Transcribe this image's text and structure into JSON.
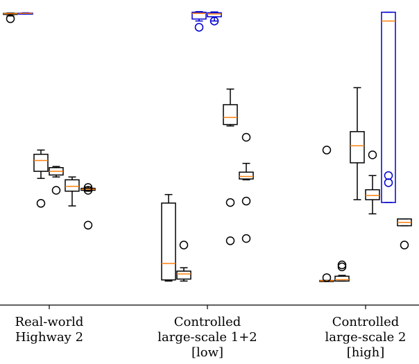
{
  "chart_data": {
    "type": "box",
    "title": "",
    "xlabel": "",
    "ylabel": "",
    "ylim": [
      0,
      100
    ],
    "grid": false,
    "legend": "none",
    "colors": {
      "default_box": "#000000",
      "highlight_box": "#0000cc",
      "median": "#ff7f0e",
      "flier": "#000000"
    },
    "categories": [
      {
        "label_lines": [
          "Real-world",
          "Highway 2"
        ]
      },
      {
        "label_lines": [
          "Controlled",
          "large-scale 1+2",
          "[low]"
        ]
      },
      {
        "label_lines": [
          "Controlled",
          "large-scale 2",
          "[high]"
        ]
      }
    ],
    "boxes": [
      {
        "group": 0,
        "slot": 0,
        "color": "black",
        "whislo": 98.3,
        "q1": 98.9,
        "med": 99.1,
        "q3": 99.2,
        "whishi": 99.3,
        "fliers": [
          97.3
        ]
      },
      {
        "group": 0,
        "slot": 1,
        "color": "blue",
        "whislo": 99.0,
        "q1": 99.1,
        "med": 99.2,
        "q3": 99.3,
        "whishi": 99.4,
        "fliers": []
      },
      {
        "group": 0,
        "slot": 2,
        "color": "black",
        "whislo": 41.0,
        "q1": 43.5,
        "med": 47.3,
        "q3": 49.5,
        "whishi": 51.0,
        "fliers": [
          32.2
        ]
      },
      {
        "group": 0,
        "slot": 3,
        "color": "black",
        "whislo": 41.5,
        "q1": 42.2,
        "med": 43.5,
        "q3": 44.8,
        "whishi": 45.2,
        "fliers": [
          36.8
        ]
      },
      {
        "group": 0,
        "slot": 4,
        "color": "black",
        "whislo": 31.3,
        "q1": 36.5,
        "med": 38.2,
        "q3": 40.5,
        "whishi": 41.5,
        "fliers": []
      },
      {
        "group": 0,
        "slot": 5,
        "color": "black",
        "whislo": 36.5,
        "q1": 36.8,
        "med": 37.2,
        "q3": 37.5,
        "whishi": 38.0,
        "fliers": [
          37.8,
          36.8,
          24.5
        ]
      },
      {
        "group": 1,
        "slot": 0,
        "color": "black",
        "whislo": 4.8,
        "q1": 5.2,
        "med": 11.0,
        "q3": 32.3,
        "whishi": 35.3,
        "fliers": []
      },
      {
        "group": 1,
        "slot": 1,
        "color": "black",
        "whislo": 4.8,
        "q1": 5.5,
        "med": 7.3,
        "q3": 8.3,
        "whishi": 9.5,
        "fliers": [
          17.5
        ]
      },
      {
        "group": 1,
        "slot": 2,
        "color": "blue",
        "whislo": 96.5,
        "q1": 97.2,
        "med": 99.2,
        "q3": 99.6,
        "whishi": 99.8,
        "fliers": [
          94.3
        ]
      },
      {
        "group": 1,
        "slot": 3,
        "color": "blue",
        "whislo": 96.5,
        "q1": 98.0,
        "med": 99.0,
        "q3": 99.4,
        "whishi": 99.7,
        "fliers": [
          96.5
        ]
      },
      {
        "group": 1,
        "slot": 4,
        "color": "black",
        "whislo": 59.5,
        "q1": 60.0,
        "med": 62.5,
        "q3": 67.0,
        "whishi": 72.5,
        "fliers": [
          32.5,
          19.0
        ]
      },
      {
        "group": 1,
        "slot": 5,
        "color": "black",
        "whislo": 40.5,
        "q1": 40.8,
        "med": 41.7,
        "q3": 43.2,
        "whishi": 46.3,
        "fliers": [
          55.5,
          33.0,
          19.8
        ]
      },
      {
        "group": 2,
        "slot": 0,
        "color": "black",
        "whislo": 4.7,
        "q1": 4.7,
        "med": 4.9,
        "q3": 5.0,
        "whishi": 5.0,
        "fliers": [
          6.0,
          51.0
        ]
      },
      {
        "group": 2,
        "slot": 1,
        "color": "black",
        "whislo": 4.8,
        "q1": 4.8,
        "med": 5.3,
        "q3": 6.5,
        "whishi": 6.8,
        "fliers": [
          9.8,
          10.5
        ]
      },
      {
        "group": 2,
        "slot": 2,
        "color": "black",
        "whislo": 33.5,
        "q1": 46.5,
        "med": 52.5,
        "q3": 57.5,
        "whishi": 73.0,
        "fliers": []
      },
      {
        "group": 2,
        "slot": 3,
        "color": "black",
        "whislo": 28.5,
        "q1": 33.5,
        "med": 35.0,
        "q3": 37.0,
        "whishi": 42.0,
        "fliers": [
          49.3
        ]
      },
      {
        "group": 2,
        "slot": 4,
        "color": "blue",
        "whislo": 32.5,
        "q1": 32.5,
        "med": 96.5,
        "q3": 99.6,
        "whishi": 99.6,
        "fliers": [
          42.0,
          39.5
        ]
      },
      {
        "group": 2,
        "slot": 5,
        "color": "black",
        "whislo": 24.3,
        "q1": 24.3,
        "med": 25.5,
        "q3": 26.7,
        "whishi": 26.7,
        "fliers": [
          17.5
        ]
      }
    ]
  }
}
